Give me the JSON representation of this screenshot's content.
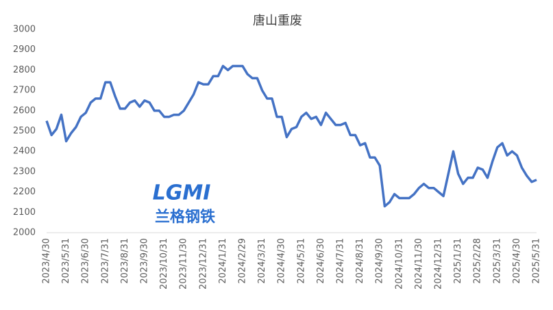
{
  "chart_data": {
    "type": "line",
    "title": "唐山重废",
    "watermark": [
      "LGMI",
      "兰格钢铁"
    ],
    "categories": [
      "2023/4/30",
      null,
      null,
      null,
      "2023/5/31",
      null,
      null,
      null,
      "2023/6/30",
      null,
      null,
      null,
      "2023/7/31",
      null,
      null,
      null,
      "2023/8/31",
      null,
      null,
      null,
      "2023/9/30",
      null,
      null,
      null,
      "2023/10/31",
      null,
      null,
      null,
      "2023/11/30",
      null,
      null,
      null,
      "2023/12/31",
      null,
      null,
      null,
      "2024/1/31",
      null,
      null,
      null,
      "2024/2/29",
      null,
      null,
      null,
      "2024/3/31",
      null,
      null,
      null,
      "2024/4/30",
      null,
      null,
      null,
      "2024/5/31",
      null,
      null,
      null,
      "2024/6/30",
      null,
      null,
      null,
      "2024/7/31",
      null,
      null,
      null,
      "2024/8/31",
      null,
      null,
      null,
      "2024/9/30",
      null,
      null,
      null,
      "2024/10/31",
      null,
      null,
      null,
      "2024/11/30",
      null,
      null,
      null,
      "2024/12/31",
      null,
      null,
      null,
      "2025/1/31",
      null,
      null,
      null,
      "2025/2/28",
      null,
      null,
      null,
      "2025/3/31",
      null,
      null,
      null,
      "2025/4/30",
      null,
      null,
      null,
      "2025/5/31"
    ],
    "series": [
      {
        "color": "#4472c4",
        "values": [
          2550,
          2480,
          2510,
          2580,
          2450,
          2490,
          2520,
          2570,
          2590,
          2640,
          2660,
          2660,
          2740,
          2740,
          2670,
          2610,
          2610,
          2640,
          2650,
          2620,
          2650,
          2640,
          2600,
          2600,
          2570,
          2570,
          2580,
          2580,
          2600,
          2640,
          2680,
          2740,
          2730,
          2730,
          2770,
          2770,
          2820,
          2800,
          2820,
          2820,
          2820,
          2780,
          2760,
          2760,
          2700,
          2660,
          2660,
          2570,
          2570,
          2470,
          2510,
          2520,
          2570,
          2590,
          2560,
          2570,
          2530,
          2590,
          2560,
          2530,
          2530,
          2540,
          2480,
          2480,
          2430,
          2440,
          2370,
          2370,
          2330,
          2130,
          2150,
          2190,
          2170,
          2170,
          2170,
          2190,
          2220,
          2240,
          2220,
          2220,
          2200,
          2180,
          2290,
          2400,
          2290,
          2240,
          2270,
          2270,
          2320,
          2310,
          2270,
          2350,
          2420,
          2440,
          2380,
          2400,
          2380,
          2320,
          2280,
          2250,
          2260
        ]
      }
    ],
    "ylim": [
      2000,
      3000
    ],
    "yticks": [
      2000,
      2100,
      2200,
      2300,
      2400,
      2500,
      2600,
      2700,
      2800,
      2900,
      3000
    ],
    "grid": false
  }
}
